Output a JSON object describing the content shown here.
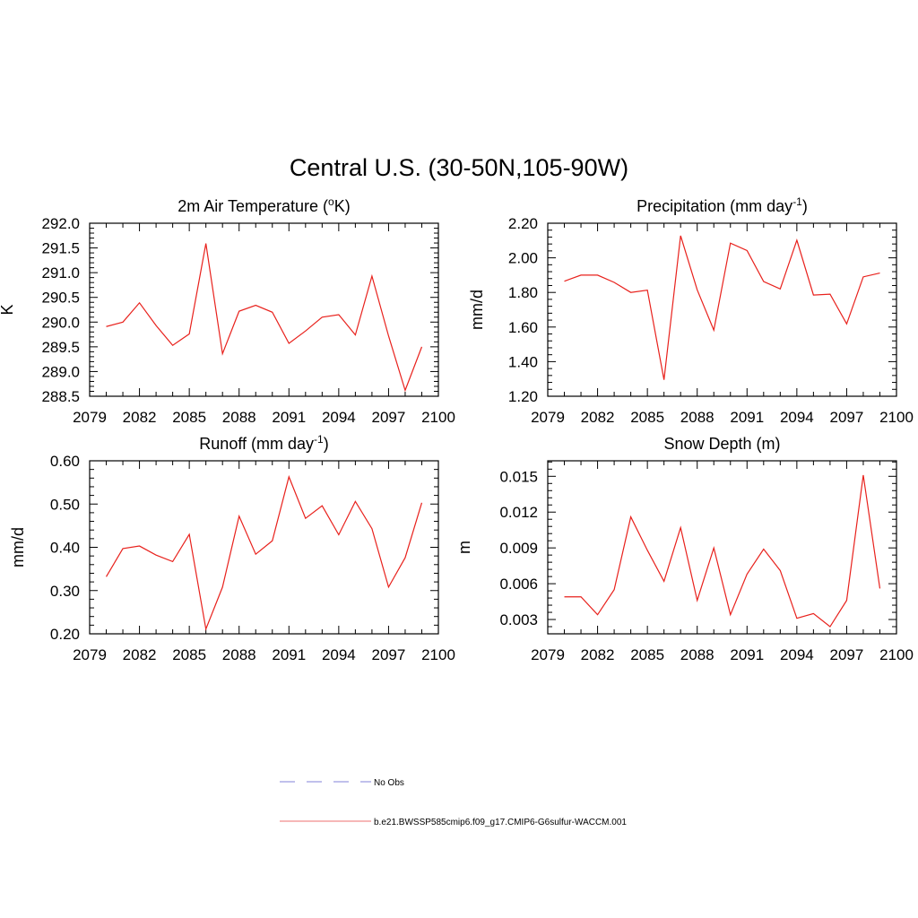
{
  "figure_title": "Central U.S. (30-50N,105-90W)",
  "line_color": "#e8211c",
  "chart_data": [
    {
      "type": "line",
      "title": "2m Air Temperature (",
      "title_sup": "o",
      "title_end": "K)",
      "ylabel": "K",
      "xlim": [
        2079,
        2100
      ],
      "ylim": [
        288.5,
        292.0
      ],
      "xticks": [
        2079,
        2082,
        2085,
        2088,
        2091,
        2094,
        2097,
        2100
      ],
      "yticks": [
        288.5,
        289.0,
        289.5,
        290.0,
        290.5,
        291.0,
        291.5,
        292.0
      ],
      "ytick_labels": [
        "288.5",
        "289.0",
        "289.5",
        "290.0",
        "290.5",
        "291.0",
        "291.5",
        "292.0"
      ],
      "x": [
        2080,
        2081,
        2082,
        2083,
        2084,
        2085,
        2086,
        2087,
        2088,
        2089,
        2090,
        2091,
        2092,
        2093,
        2094,
        2095,
        2096,
        2097,
        2098,
        2099
      ],
      "series": [
        {
          "name": "b.e21.BWSSP585cmip6.f09_g17.CMIP6-G6sulfur-WACCM.001",
          "values": [
            289.91,
            290.0,
            290.39,
            289.93,
            289.53,
            289.76,
            291.59,
            289.36,
            290.22,
            290.34,
            290.2,
            289.57,
            289.82,
            290.1,
            290.15,
            289.74,
            290.93,
            289.72,
            288.62,
            289.5
          ]
        }
      ]
    },
    {
      "type": "line",
      "title": "Precipitation (mm day",
      "title_sup": "-1",
      "title_end": ")",
      "ylabel": "mm/d",
      "xlim": [
        2079,
        2100
      ],
      "ylim": [
        1.2,
        2.2
      ],
      "xticks": [
        2079,
        2082,
        2085,
        2088,
        2091,
        2094,
        2097,
        2100
      ],
      "yticks": [
        1.2,
        1.4,
        1.6,
        1.8,
        2.0,
        2.2
      ],
      "ytick_labels": [
        "1.20",
        "1.40",
        "1.60",
        "1.80",
        "2.00",
        "2.20"
      ],
      "x": [
        2080,
        2081,
        2082,
        2083,
        2084,
        2085,
        2086,
        2087,
        2088,
        2089,
        2090,
        2091,
        2092,
        2093,
        2094,
        2095,
        2096,
        2097,
        2098,
        2099
      ],
      "series": [
        {
          "name": "b.e21.BWSSP585cmip6.f09_g17.CMIP6-G6sulfur-WACCM.001",
          "values": [
            1.865,
            1.9,
            1.9,
            1.858,
            1.8,
            1.813,
            1.295,
            2.128,
            1.815,
            1.582,
            2.085,
            2.042,
            1.863,
            1.82,
            2.102,
            1.785,
            1.79,
            1.618,
            1.89,
            1.912
          ]
        }
      ]
    },
    {
      "type": "line",
      "title": "Runoff (mm day",
      "title_sup": "-1",
      "title_end": ")",
      "ylabel": "mm/d",
      "xlim": [
        2079,
        2100
      ],
      "ylim": [
        0.2,
        0.6
      ],
      "xticks": [
        2079,
        2082,
        2085,
        2088,
        2091,
        2094,
        2097,
        2100
      ],
      "yticks": [
        0.2,
        0.3,
        0.4,
        0.5,
        0.6
      ],
      "ytick_labels": [
        "0.20",
        "0.30",
        "0.40",
        "0.50",
        "0.60"
      ],
      "x": [
        2080,
        2081,
        2082,
        2083,
        2084,
        2085,
        2086,
        2087,
        2088,
        2089,
        2090,
        2091,
        2092,
        2093,
        2094,
        2095,
        2096,
        2097,
        2098,
        2099
      ],
      "series": [
        {
          "name": "b.e21.BWSSP585cmip6.f09_g17.CMIP6-G6sulfur-WACCM.001",
          "values": [
            0.332,
            0.397,
            0.403,
            0.382,
            0.367,
            0.43,
            0.211,
            0.308,
            0.472,
            0.384,
            0.415,
            0.563,
            0.467,
            0.496,
            0.429,
            0.506,
            0.443,
            0.308,
            0.376,
            0.503
          ]
        }
      ]
    },
    {
      "type": "line",
      "title": "Snow Depth (m)",
      "title_sup": "",
      "title_end": "",
      "ylabel": "m",
      "xlim": [
        2079,
        2100
      ],
      "ylim": [
        0.0018,
        0.0163
      ],
      "xticks": [
        2079,
        2082,
        2085,
        2088,
        2091,
        2094,
        2097,
        2100
      ],
      "yticks": [
        0.003,
        0.006,
        0.009,
        0.012,
        0.015
      ],
      "ytick_labels": [
        "0.003",
        "0.006",
        "0.009",
        "0.012",
        "0.015"
      ],
      "x": [
        2080,
        2081,
        2082,
        2083,
        2084,
        2085,
        2086,
        2087,
        2088,
        2089,
        2090,
        2091,
        2092,
        2093,
        2094,
        2095,
        2096,
        2097,
        2098,
        2099
      ],
      "series": [
        {
          "name": "b.e21.BWSSP585cmip6.f09_g17.CMIP6-G6sulfur-WACCM.001",
          "values": [
            0.0049,
            0.0049,
            0.0034,
            0.0055,
            0.0116,
            0.0088,
            0.0062,
            0.0107,
            0.0046,
            0.009,
            0.0034,
            0.0068,
            0.0089,
            0.0071,
            0.0031,
            0.0035,
            0.0024,
            0.0046,
            0.0151,
            0.0056
          ]
        }
      ]
    }
  ],
  "legend": {
    "placement": "bottom",
    "entries": [
      {
        "label": "No Obs",
        "color": "#9a9ae0",
        "dash": true
      },
      {
        "label": "b.e21.BWSSP585cmip6.f09_g17.CMIP6-G6sulfur-WACCM.001",
        "color": "#f08c8c",
        "dash": false
      }
    ]
  }
}
